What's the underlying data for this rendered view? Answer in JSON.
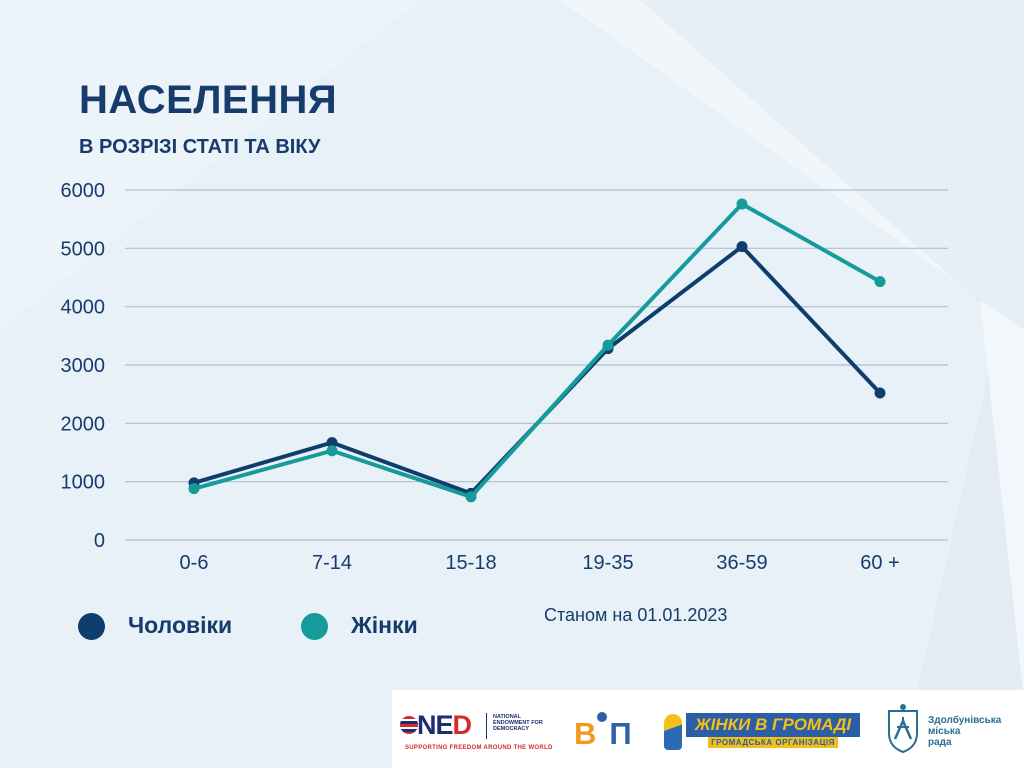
{
  "header": {
    "title": "НАСЕЛЕННЯ",
    "subtitle": "В РОЗРІЗІ СТАТІ ТА ВІКУ"
  },
  "colors": {
    "men": "#0e3e6d",
    "women": "#169b9b",
    "heading": "#173c6b",
    "grid": "#aebfd2"
  },
  "chart_data": {
    "type": "line",
    "x": [
      "0-6",
      "7-14",
      "15-18",
      "19-35",
      "36-59",
      "60 +"
    ],
    "series": [
      {
        "name": "Чоловіки",
        "values": [
          980,
          1670,
          800,
          3280,
          5030,
          2520
        ]
      },
      {
        "name": "Жінки",
        "values": [
          880,
          1530,
          740,
          3340,
          5760,
          4430
        ]
      }
    ],
    "yticks": [
      "0",
      "1000",
      "2000",
      "3000",
      "4000",
      "5000",
      "6000"
    ],
    "ylim": [
      0,
      6000
    ],
    "grid": true,
    "legend_position": "bottom-left",
    "title": "",
    "xlabel": "",
    "ylabel": ""
  },
  "legend": {
    "men_label": "Чоловіки",
    "women_label": "Жінки"
  },
  "note": "Станом на 01.01.2023",
  "logos": {
    "ned": {
      "mark_n": "N",
      "mark_e": "E",
      "mark_d": "D",
      "words": "NATIONAL ENDOWMENT FOR DEMOCRACY",
      "tagline": "SUPPORTING FREEDOM AROUND THE WORLD"
    },
    "vip": {
      "part1": "В",
      "part2": "П"
    },
    "wig": {
      "title": "ЖІНКИ В ГРОМАДІ",
      "sub": "ГРОМАДСЬКА ОРГАНІЗАЦІЯ"
    },
    "rada": {
      "text": "Здолбунівська\nміська\nрада"
    }
  }
}
